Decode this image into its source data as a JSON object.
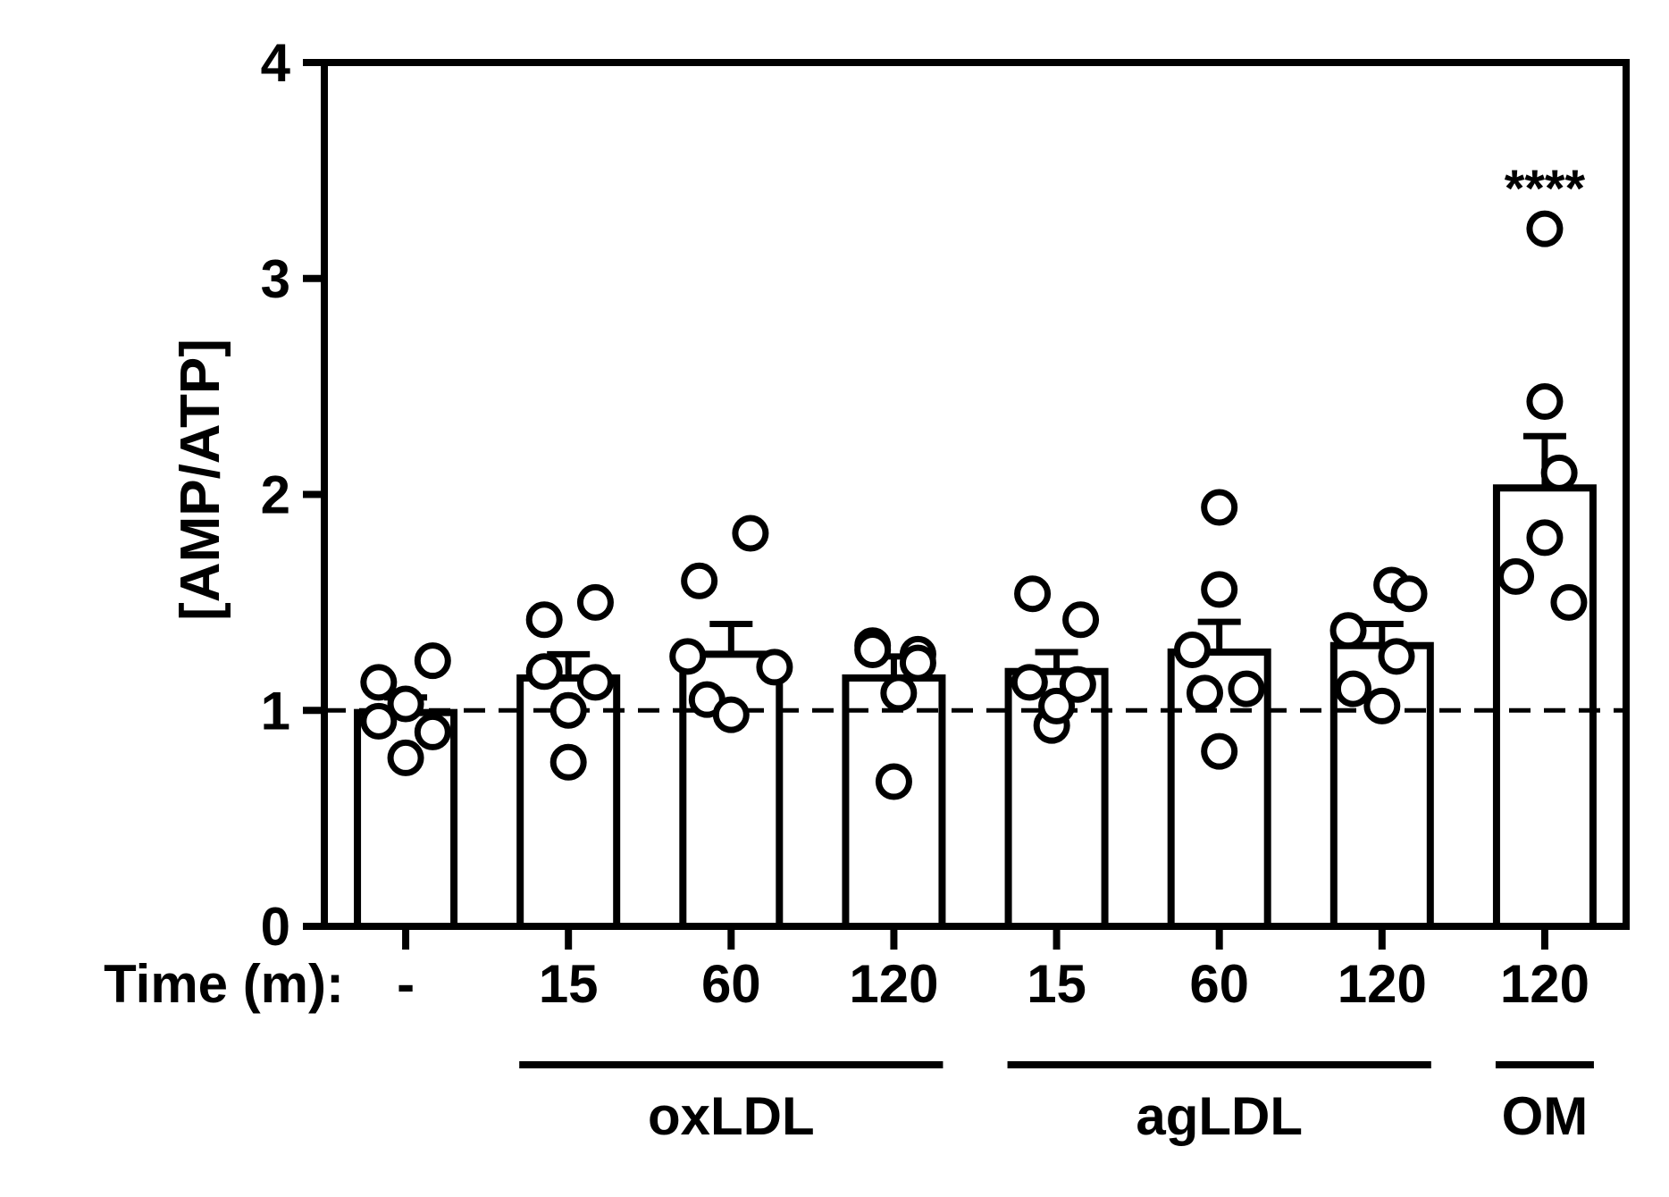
{
  "chart_data": {
    "type": "bar",
    "ylabel": "[AMP/ATP]",
    "xlabel": "Time (m):",
    "ylim": [
      0,
      4
    ],
    "yticks": [
      0,
      1,
      2,
      3,
      4
    ],
    "reference_line": 1,
    "categories": [
      "-",
      "15",
      "60",
      "120",
      "15",
      "60",
      "120",
      "120"
    ],
    "groups": [
      {
        "label": "oxLDL",
        "from": 1,
        "to": 3
      },
      {
        "label": "agLDL",
        "from": 4,
        "to": 6
      },
      {
        "label": "OM",
        "from": 7,
        "to": 7
      }
    ],
    "values": [
      0.99,
      1.15,
      1.26,
      1.15,
      1.18,
      1.27,
      1.3,
      2.03
    ],
    "errors": [
      0.07,
      0.11,
      0.14,
      0.1,
      0.09,
      0.14,
      0.1,
      0.24
    ],
    "points": [
      [
        1.13,
        1.23,
        0.95,
        1.03,
        0.9,
        0.78
      ],
      [
        1.42,
        1.5,
        1.18,
        1.0,
        1.13,
        0.76
      ],
      [
        1.6,
        1.82,
        1.25,
        1.2,
        1.05,
        0.98
      ],
      [
        1.3,
        1.26,
        1.28,
        1.08,
        1.22,
        0.67
      ],
      [
        1.54,
        1.42,
        1.13,
        1.12,
        0.93,
        1.02
      ],
      [
        1.94,
        1.56,
        1.28,
        1.1,
        1.08,
        0.81
      ],
      [
        1.58,
        1.54,
        1.37,
        1.25,
        1.1,
        1.02
      ],
      [
        3.23,
        2.43,
        2.1,
        1.8,
        1.62,
        1.5
      ]
    ],
    "point_offsets": [
      [
        -0.28,
        0.28,
        -0.28,
        0.0,
        0.28,
        0.0
      ],
      [
        -0.25,
        0.28,
        -0.25,
        0.0,
        0.28,
        0.0
      ],
      [
        -0.33,
        0.2,
        -0.45,
        0.45,
        -0.25,
        0.0
      ],
      [
        -0.22,
        0.25,
        -0.22,
        0.05,
        0.25,
        0.0
      ],
      [
        -0.25,
        0.25,
        -0.28,
        0.22,
        -0.05,
        0.0
      ],
      [
        0.0,
        0.0,
        -0.28,
        0.28,
        -0.15,
        0.0
      ],
      [
        0.1,
        0.28,
        -0.35,
        0.15,
        -0.3,
        0.0
      ],
      [
        0.0,
        0.0,
        0.15,
        0.0,
        -0.3,
        0.25
      ]
    ],
    "annotations": [
      {
        "index": 7,
        "text": "****"
      }
    ],
    "grid": false,
    "legend": "none"
  }
}
